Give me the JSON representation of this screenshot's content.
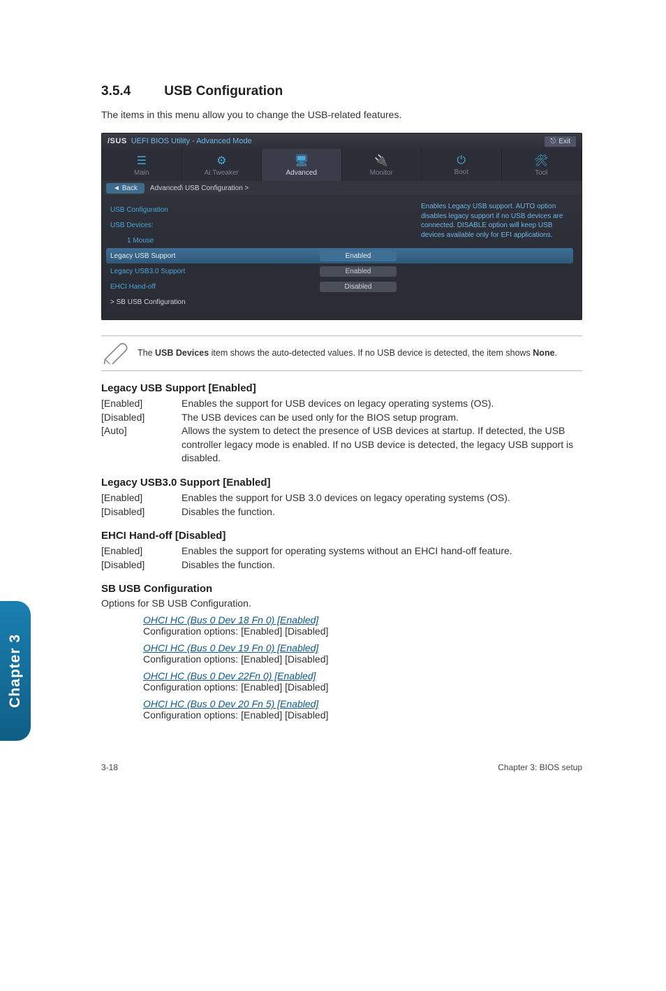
{
  "section": {
    "number": "3.5.4",
    "title": "USB Configuration"
  },
  "intro": "The items in this menu allow you to change the USB-related features.",
  "bios": {
    "logo_brand": "/SUS",
    "logo_sub": "UEFI BIOS Utility - Advanced Mode",
    "exit_label": "Exit",
    "tabs": [
      {
        "label": "Main",
        "icon": "☰"
      },
      {
        "label": "Ai Tweaker",
        "icon": "⚙"
      },
      {
        "label": "Advanced",
        "icon": "🖥"
      },
      {
        "label": "Monitor",
        "icon": "🔌"
      },
      {
        "label": "Boot",
        "icon": "⏻"
      },
      {
        "label": "Tool",
        "icon": "🛠"
      }
    ],
    "active_tab_index": 2,
    "back_label": "Back",
    "crumb": "Advanced\\ USB Configuration  >",
    "help_text": "Enables Legacy USB support. AUTO option disables legacy support if no USB devices are connected. DISABLE option will keep USB devices available only for EFI applications.",
    "rows": [
      {
        "kind": "heading",
        "label": "USB Configuration"
      },
      {
        "kind": "heading",
        "label": "USB Devices:"
      },
      {
        "kind": "indent",
        "label": "1 Mouse"
      },
      {
        "kind": "highlight",
        "label": "Legacy USB Support",
        "value": "Enabled",
        "value_blue": true
      },
      {
        "kind": "normal",
        "label": "Legacy USB3.0 Support",
        "value": "Enabled"
      },
      {
        "kind": "normal",
        "label": "EHCI Hand-off",
        "value": "Disabled"
      },
      {
        "kind": "white",
        "label": "> SB USB Configuration"
      }
    ]
  },
  "note": {
    "prefix": "The ",
    "bold1": "USB Devices",
    "mid": " item shows the auto-detected values. If no USB device is detected, the item shows ",
    "bold2": "None",
    "suffix": "."
  },
  "legacy_usb": {
    "title": "Legacy USB Support [Enabled]",
    "options": [
      {
        "key": "[Enabled]",
        "val": "Enables the support for USB devices on legacy operating systems (OS)."
      },
      {
        "key": "[Disabled]",
        "val": "The USB devices can be used only for the BIOS setup program."
      },
      {
        "key": "[Auto]",
        "val": "Allows the system to detect the presence of USB devices at startup. If detected, the USB controller legacy mode is enabled. If no USB device is detected, the legacy USB support is disabled."
      }
    ]
  },
  "legacy_usb30": {
    "title": "Legacy USB3.0 Support [Enabled]",
    "options": [
      {
        "key": "[Enabled]",
        "val": "Enables the support for USB 3.0 devices on legacy operating systems (OS)."
      },
      {
        "key": "[Disabled]",
        "val": "Disables the function."
      }
    ]
  },
  "ehci": {
    "title": "EHCI Hand-off [Disabled]",
    "options": [
      {
        "key": "[Enabled]",
        "val": "Enables the support for operating systems without an EHCI hand-off feature."
      },
      {
        "key": "[Disabled]",
        "val": "Disables the function."
      }
    ]
  },
  "sbusb": {
    "title": "SB USB Configuration",
    "intro": "Options for SB USB Configuration.",
    "items": [
      {
        "title": "OHCI HC (Bus 0 Dev 18 Fn 0) [Enabled]",
        "opts": "Configuration options: [Enabled] [Disabled]"
      },
      {
        "title": "OHCI HC (Bus 0 Dev 19 Fn 0) [Enabled]",
        "opts": "Configuration options: [Enabled] [Disabled]"
      },
      {
        "title": "OHCI HC (Bus 0 Dev 22Fn 0) [Enabled]",
        "opts": "Configuration options: [Enabled] [Disabled]"
      },
      {
        "title": "OHCI HC (Bus 0 Dev 20 Fn 5) [Enabled]",
        "opts": "Configuration options: [Enabled] [Disabled]"
      }
    ]
  },
  "side_tab": "Chapter 3",
  "footer": {
    "left": "3-18",
    "right": "Chapter 3: BIOS setup"
  },
  "colors": {
    "bios_bg": "#2b2d37",
    "bios_highlight": "#3e6f95",
    "bios_help": "#6fb8e6",
    "link_blue": "#0d5a8a",
    "side_tab_top": "#1a7fb0",
    "side_tab_bottom": "#0f5e85"
  }
}
